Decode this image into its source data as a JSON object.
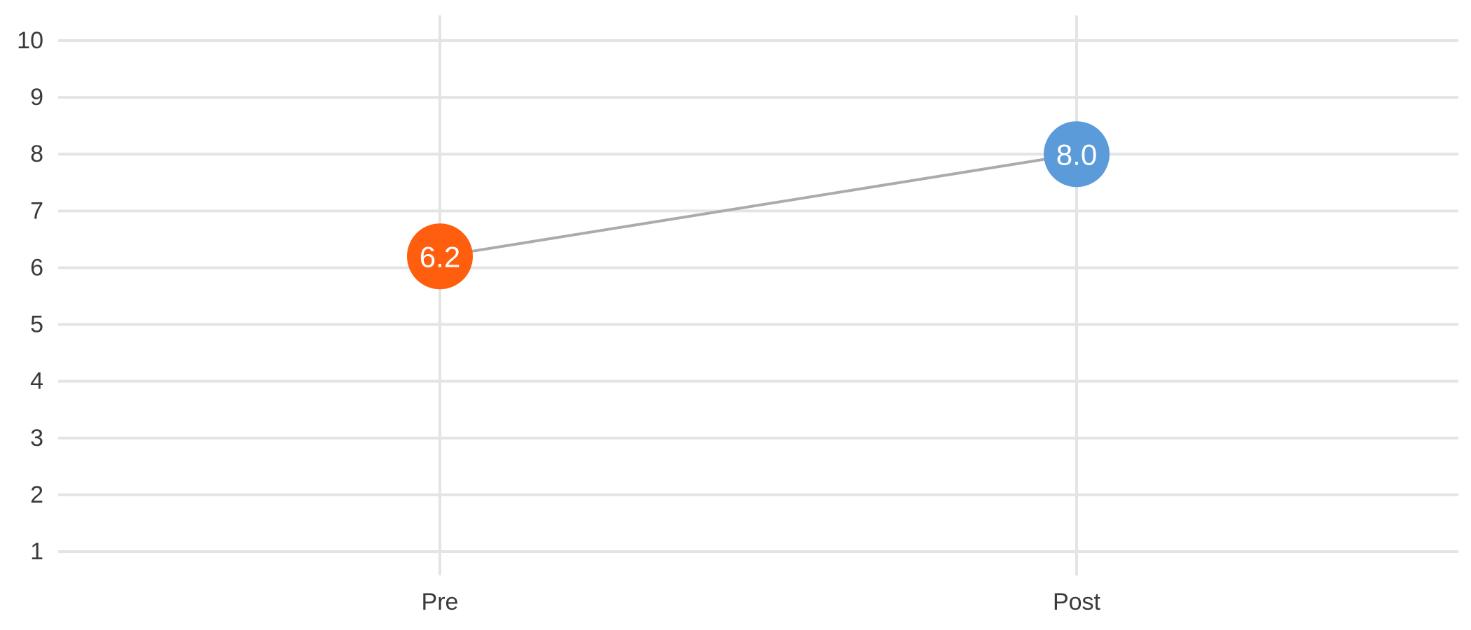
{
  "chart_data": {
    "type": "line",
    "title": "",
    "xlabel": "",
    "ylabel": "",
    "categories": [
      "Pre",
      "Post"
    ],
    "values": [
      6.2,
      8.0
    ],
    "value_labels": [
      "6.2",
      "8.0"
    ],
    "point_colors": [
      "#ff5e0e",
      "#5b9bd9"
    ],
    "connector_color": "#ababab",
    "ylim": [
      1,
      10
    ],
    "yticks": [
      "1",
      "2",
      "3",
      "4",
      "5",
      "6",
      "7",
      "8",
      "9",
      "10"
    ],
    "grid": true,
    "legend": "none"
  }
}
